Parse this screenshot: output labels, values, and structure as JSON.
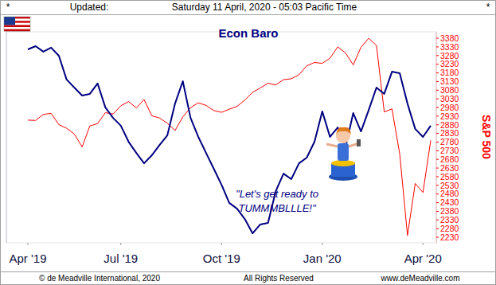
{
  "header": {
    "left_mark": "*",
    "updated": "Updated:",
    "timestamp": "Saturday 11 April, 2020 - 05:03 Pacific Time",
    "right_mark": "*"
  },
  "chart_data": {
    "type": "line",
    "y2_label": "S&P 500",
    "annotations": [
      "\"Let's get ready to",
      "TUMMMBLLLE!\""
    ],
    "categories": [
      "Apr '19",
      null,
      null,
      null,
      null,
      null,
      null,
      null,
      null,
      null,
      null,
      null,
      "Jul '19",
      null,
      null,
      null,
      null,
      null,
      null,
      null,
      null,
      null,
      null,
      null,
      null,
      "Oct '19",
      null,
      null,
      null,
      null,
      null,
      null,
      null,
      null,
      null,
      null,
      null,
      null,
      "Jan '20",
      null,
      null,
      null,
      null,
      null,
      null,
      null,
      null,
      null,
      null,
      null,
      null,
      "Apr '20",
      null
    ],
    "ylim": [
      0,
      100
    ],
    "y2lim": [
      2198,
      3417
    ],
    "y2ticks": [
      2230,
      2280,
      2330,
      2380,
      2430,
      2480,
      2530,
      2580,
      2630,
      2680,
      2730,
      2780,
      2830,
      2880,
      2930,
      2980,
      3030,
      3080,
      3130,
      3180,
      3230,
      3280,
      3330,
      3380
    ],
    "series": [
      {
        "name": "Econ Baro",
        "color": "#000080",
        "values": [
          91.7,
          93.2,
          90.6,
          92.5,
          88.7,
          77.4,
          73.6,
          69.8,
          70.6,
          75.5,
          64.2,
          59.2,
          55.5,
          47.9,
          42.6,
          37.7,
          41.5,
          46.4,
          50.9,
          66.0,
          76.6,
          59.2,
          50.2,
          42.6,
          35.1,
          27.5,
          18.9,
          16.2,
          11.3,
          4.5,
          8.7,
          9.4,
          24.5,
          32.8,
          30.2,
          37.7,
          40.4,
          47.9,
          62.3,
          50.2,
          54.7,
          45.3,
          61.5,
          52.8,
          63.0,
          73.6,
          70.6,
          81.1,
          80.4,
          66.0,
          54.0,
          50.2,
          55.5
        ]
      },
      {
        "name": "S&P 500",
        "color": "#ff0000",
        "axis": "y2",
        "values": [
          2907,
          2905,
          2940,
          2946,
          2881,
          2860,
          2826,
          2752,
          2873,
          2887,
          2950,
          2942,
          2990,
          3014,
          2977,
          3026,
          2932,
          2919,
          2889,
          2847,
          2926,
          2979,
          3007,
          2992,
          2962,
          2952,
          2970,
          2986,
          3023,
          3067,
          3093,
          3120,
          3110,
          3141,
          3146,
          3169,
          3221,
          3240,
          3235,
          3265,
          3330,
          3295,
          3226,
          3328,
          3380,
          3338,
          2954,
          2972,
          2711,
          2240,
          2541,
          2489,
          2790
        ]
      }
    ]
  },
  "footer": {
    "copyright": "© de Meadville International, 2020",
    "rights": "All Rights Reserved",
    "website": "www.deMeadville.com"
  }
}
